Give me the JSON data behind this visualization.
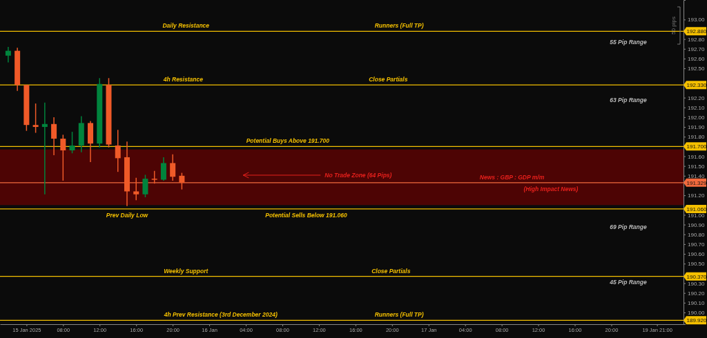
{
  "chart_data": {
    "type": "candlestick",
    "categories": [
      null,
      null,
      "15 Jan 2025",
      null,
      null,
      null,
      "08:00",
      null,
      null,
      null,
      "12:00",
      null,
      null,
      null,
      "16:00",
      null,
      null,
      null,
      "20:00",
      null,
      null,
      null,
      "16 Jan",
      null,
      null,
      null,
      "04:00",
      null,
      null,
      null,
      "08:00",
      null,
      null,
      null,
      "12:00",
      null,
      null,
      null,
      "16:00",
      null,
      null,
      null,
      "20:00",
      null,
      null,
      null,
      "17 Jan",
      null,
      null,
      null,
      "04:00",
      null,
      null,
      null,
      "08:00",
      null,
      null,
      null,
      "12:00",
      null,
      null,
      null,
      "16:00",
      null,
      null,
      null,
      "20:00",
      null,
      null,
      null,
      null,
      "19 Jan 21:00",
      null,
      null
    ],
    "ohlc": [
      [
        192.63,
        192.72,
        192.56,
        192.68
      ],
      [
        192.68,
        192.71,
        192.27,
        192.33
      ],
      [
        192.33,
        192.33,
        191.86,
        191.92
      ],
      [
        191.92,
        192.14,
        191.84,
        191.9
      ],
      [
        191.9,
        192.15,
        191.21,
        191.93
      ],
      [
        191.93,
        192.0,
        191.61,
        191.78
      ],
      [
        191.78,
        191.82,
        191.35,
        191.66
      ],
      [
        191.66,
        191.85,
        191.63,
        191.71
      ],
      [
        191.71,
        192.01,
        191.64,
        191.94
      ],
      [
        191.94,
        191.96,
        191.54,
        191.73
      ],
      [
        191.73,
        192.4,
        191.69,
        192.34
      ],
      [
        192.33,
        192.4,
        191.69,
        191.72
      ],
      [
        191.71,
        191.87,
        191.44,
        191.58
      ],
      [
        191.59,
        191.75,
        191.09,
        191.24
      ],
      [
        191.24,
        191.38,
        191.15,
        191.21
      ],
      [
        191.21,
        191.41,
        191.18,
        191.37
      ],
      [
        191.37,
        191.45,
        191.32,
        191.36
      ],
      [
        191.36,
        191.59,
        191.35,
        191.53
      ],
      [
        191.53,
        191.62,
        191.35,
        191.39
      ],
      [
        191.4,
        191.43,
        191.26,
        191.329
      ],
      null,
      null,
      null,
      null,
      null,
      null,
      null,
      null,
      null,
      null,
      null,
      null,
      null,
      null,
      null,
      null,
      null,
      null,
      null,
      null,
      null,
      null,
      null,
      null,
      null,
      null,
      null,
      null,
      null,
      null,
      null,
      null,
      null,
      null,
      null,
      null,
      null,
      null,
      null,
      null,
      null,
      null,
      null,
      null,
      null,
      null,
      null,
      null,
      null,
      null,
      null,
      null,
      null,
      null
    ],
    "colors": [
      "#00843d",
      "#f05a28",
      "#f05a28",
      "#f05a28",
      "#00843d",
      "#f05a28",
      "#f05a28",
      "#00843d",
      "#00843d",
      "#f05a28",
      "#00843d",
      "#f05a28",
      "#f05a28",
      "#f05a28",
      "#f05a28",
      "#00843d",
      "#f05a28",
      "#00843d",
      "#f05a28",
      "#f05a28",
      null,
      null,
      null,
      null,
      null,
      null,
      null,
      null,
      null,
      null,
      null,
      null,
      null,
      null,
      null,
      null,
      null,
      null,
      null,
      null,
      null,
      null,
      null,
      null,
      null,
      null,
      null,
      null,
      null,
      null,
      null,
      null,
      null,
      null,
      null,
      null,
      null,
      null,
      null,
      null,
      null,
      null,
      null,
      null,
      null,
      null,
      null,
      null,
      null,
      null,
      null,
      null,
      null,
      null
    ],
    "ylim": [
      189.88,
      193.2
    ],
    "yticks": [
      {
        "value": 193.0,
        "label": "193.00"
      },
      {
        "value": 192.8,
        "label": "192.80"
      },
      {
        "value": 192.7,
        "label": "192.70"
      },
      {
        "value": 192.6,
        "label": "192.60"
      },
      {
        "value": 192.5,
        "label": "192.50"
      },
      {
        "value": 192.2,
        "label": "192.20"
      },
      {
        "value": 192.1,
        "label": "192.10"
      },
      {
        "value": 192.0,
        "label": "192.00"
      },
      {
        "value": 191.9,
        "label": "191.90"
      },
      {
        "value": 191.8,
        "label": "191.80"
      },
      {
        "value": 191.6,
        "label": "191.60"
      },
      {
        "value": 191.5,
        "label": "191.50"
      },
      {
        "value": 191.4,
        "label": "191.40"
      },
      {
        "value": 191.2,
        "label": "191.20"
      },
      {
        "value": 191.0,
        "label": "191.00"
      },
      {
        "value": 190.9,
        "label": "190.90"
      },
      {
        "value": 190.8,
        "label": "190.80"
      },
      {
        "value": 190.7,
        "label": "190.70"
      },
      {
        "value": 190.6,
        "label": "190.60"
      },
      {
        "value": 190.5,
        "label": "190.50"
      },
      {
        "value": 190.3,
        "label": "190.30"
      },
      {
        "value": 190.2,
        "label": "190.20"
      },
      {
        "value": 190.1,
        "label": "190.10"
      },
      {
        "value": 190.0,
        "label": "190.00"
      }
    ],
    "ref_lines": [
      {
        "axis": "y",
        "value": 192.88,
        "label": "192.880",
        "color": "#f5c000"
      },
      {
        "axis": "y",
        "value": 192.33,
        "label": "192.330",
        "color": "#f5c000"
      },
      {
        "axis": "y",
        "value": 191.7,
        "label": "191.700",
        "color": "#f5c000"
      },
      {
        "axis": "y",
        "value": 191.329,
        "label": "191.329",
        "color": "#f26a3d"
      },
      {
        "axis": "y",
        "value": 191.06,
        "label": "191.060",
        "color": "#f5c000"
      },
      {
        "axis": "y",
        "value": 190.37,
        "label": "190.370",
        "color": "#f5c000"
      },
      {
        "axis": "y",
        "value": 189.92,
        "label": "189.920",
        "color": "#f5c000"
      }
    ],
    "bands": [
      {
        "axis": "y",
        "from": 191.1,
        "to": 191.67,
        "color": "#7a0000"
      }
    ],
    "annotations": [
      {
        "text": "Daily Resistance",
        "y": 192.88
      },
      {
        "text": "Runners (Full TP)",
        "y": 192.88
      },
      {
        "text": "4h Resistance",
        "y": 192.33
      },
      {
        "text": "Close Partials",
        "y": 192.33
      },
      {
        "text": "Potential Buys Above 191.700",
        "y": 191.7
      },
      {
        "text": "Potential Sells Below 191.060",
        "y": 191.06
      },
      {
        "text": "Weekly Support",
        "y": 190.37
      },
      {
        "text": "Close Partials",
        "y": 190.37
      },
      {
        "text": "4h Prev Resistance (3rd December 2024)",
        "y": 189.92
      },
      {
        "text": "Runners (Full TP)",
        "y": 189.92
      },
      {
        "text": "News : GBP : GDP m/m",
        "y": 191.329
      },
      {
        "text": "(High Impact News)",
        "y": 191.329
      },
      {
        "text": "Prev Daily Low",
        "y": 191.09
      },
      "55 Pip Range",
      "63 Pip Range",
      "69 Pip Range",
      "45 Pip Range",
      "No Trade Zone (64 Pips)",
      "50 pips"
    ]
  }
}
